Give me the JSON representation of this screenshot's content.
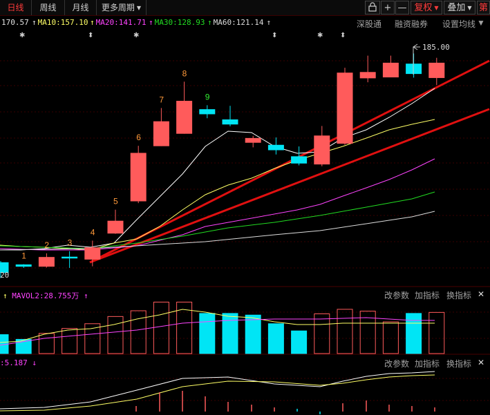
{
  "toolbar": {
    "tabs": [
      {
        "label": "日线",
        "active": true
      },
      {
        "label": "周线",
        "active": false
      },
      {
        "label": "月线",
        "active": false
      },
      {
        "label": "更多周期",
        "active": false
      }
    ],
    "buttons": {
      "lock_icon": "lock-icon",
      "plus": "+",
      "minus": "—",
      "adjust": "复权",
      "overlay": "叠加",
      "more": "第"
    }
  },
  "ma_legend": {
    "first": "170.57",
    "ma10": "MA10:157.10",
    "ma20": "MA20:141.71",
    "ma30": "MA30:128.93",
    "ma60": "MA60:121.14",
    "colors": {
      "ma5": "#ffffff",
      "ma10": "#ffff66",
      "ma20": "#ff44ff",
      "ma30": "#22dd22",
      "ma60": "#dddddd"
    }
  },
  "right_links": {
    "a": "深股通",
    "b": "融资融券",
    "c": "设置均线"
  },
  "price_annotations": {
    "high_label": "185.00",
    "left_label": "20",
    "counts": [
      "1",
      "2",
      "3",
      "4",
      "5",
      "6",
      "7",
      "8",
      "9"
    ]
  },
  "volume_panel": {
    "label": "MAVOL2:28.755万",
    "btn_params": "改参数",
    "btn_add": "加指标",
    "btn_switch": "换指标"
  },
  "macd_panel": {
    "label": ":5.187",
    "btn_params": "改参数",
    "btn_add": "加指标",
    "btn_switch": "换指标"
  },
  "chart_data": {
    "type": "candlestick",
    "price_scale": {
      "min": 112,
      "max": 190
    },
    "candles": [
      {
        "o": 117.5,
        "c": 114.3,
        "h": 118.0,
        "l": 112.5
      },
      {
        "o": 116.8,
        "c": 116.3,
        "h": 117.0,
        "l": 115.8
      },
      {
        "o": 116.3,
        "c": 119.2,
        "h": 120.5,
        "l": 115.9
      },
      {
        "o": 119.3,
        "c": 119.0,
        "h": 121.2,
        "l": 115.8
      },
      {
        "o": 118.6,
        "c": 122.3,
        "h": 124.6,
        "l": 116.3
      },
      {
        "o": 127.0,
        "c": 130.9,
        "h": 134.6,
        "l": 126.8
      },
      {
        "o": 137.4,
        "c": 152.8,
        "h": 155.2,
        "l": 136.7
      },
      {
        "o": 155.2,
        "c": 163.0,
        "h": 167.4,
        "l": 155.1
      },
      {
        "o": 159.2,
        "c": 169.6,
        "h": 175.9,
        "l": 159.1
      },
      {
        "o": 166.9,
        "c": 165.5,
        "h": 168.3,
        "l": 164.1
      },
      {
        "o": 163.6,
        "c": 162.2,
        "h": 168.1,
        "l": 161.5
      },
      {
        "o": 156.3,
        "c": 157.6,
        "h": 158.4,
        "l": 154.7
      },
      {
        "o": 155.4,
        "c": 153.9,
        "h": 157.9,
        "l": 152.4
      },
      {
        "o": 151.7,
        "c": 149.6,
        "h": 155.0,
        "l": 148.9
      },
      {
        "o": 149.3,
        "c": 158.4,
        "h": 161.6,
        "l": 148.6
      },
      {
        "o": 156.0,
        "c": 178.7,
        "h": 180.4,
        "l": 155.5
      },
      {
        "o": 177.1,
        "c": 178.9,
        "h": 184.3,
        "l": 175.7
      },
      {
        "o": 177.4,
        "c": 181.9,
        "h": 184.3,
        "l": 177.4
      },
      {
        "o": 181.6,
        "c": 178.5,
        "h": 185.0,
        "l": 177.2
      },
      {
        "o": 177.2,
        "c": 181.9,
        "h": 183.6,
        "l": 174.8
      }
    ],
    "volume": [
      {
        "v": 9.2,
        "up": false
      },
      {
        "v": 6.9,
        "up": false
      },
      {
        "v": 9.8,
        "up": true
      },
      {
        "v": 12.2,
        "up": true
      },
      {
        "v": 14.5,
        "up": true
      },
      {
        "v": 18.0,
        "up": true
      },
      {
        "v": 20.8,
        "up": true
      },
      {
        "v": 25.0,
        "up": true
      },
      {
        "v": 25.0,
        "up": true
      },
      {
        "v": 19.5,
        "up": false
      },
      {
        "v": 19.5,
        "up": false
      },
      {
        "v": 18.7,
        "up": false
      },
      {
        "v": 14.5,
        "up": false
      },
      {
        "v": 11.0,
        "up": false
      },
      {
        "v": 19.3,
        "up": true
      },
      {
        "v": 21.5,
        "up": true
      },
      {
        "v": 20.6,
        "up": true
      },
      {
        "v": 15.4,
        "up": true
      },
      {
        "v": 19.5,
        "up": false
      },
      {
        "v": 20.0,
        "up": true
      }
    ]
  }
}
